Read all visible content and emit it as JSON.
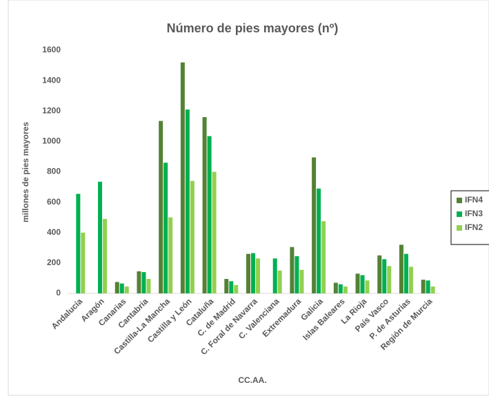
{
  "chart_data": {
    "type": "bar",
    "title": "Número de pies mayores (nº)",
    "x_label": "CC.AA.",
    "y_label": "millones de pies mayores",
    "categories": [
      "Andalucía",
      "Aragón",
      "Canarias",
      "Cantabria",
      "Castilla-La Mancha",
      "Castilla y León",
      "Cataluña",
      "C. de Madrid",
      "C. Foral de Navarra",
      "C. Valenciana",
      "Extremadura",
      "Galicia",
      "Islas Baleares",
      "La Rioja",
      "País Vasco",
      "P. de Asturias",
      "Región de Murcia"
    ],
    "series": [
      {
        "name": "IFN4",
        "color": "#548235",
        "values": [
          null,
          null,
          75,
          145,
          1135,
          1520,
          1160,
          95,
          260,
          null,
          305,
          895,
          70,
          130,
          250,
          320,
          90
        ]
      },
      {
        "name": "IFN3",
        "color": "#00b050",
        "values": [
          655,
          735,
          65,
          140,
          860,
          1210,
          1035,
          80,
          265,
          230,
          245,
          690,
          60,
          120,
          225,
          260,
          85
        ]
      },
      {
        "name": "IFN2",
        "color": "#92d050",
        "values": [
          400,
          490,
          45,
          95,
          500,
          740,
          800,
          55,
          230,
          150,
          155,
          475,
          45,
          85,
          180,
          175,
          45
        ]
      }
    ],
    "ylim": [
      0,
      1600
    ],
    "yticks": [
      0,
      200,
      400,
      600,
      800,
      1000,
      1200,
      1400,
      1600
    ],
    "grid": false,
    "legend": "right"
  }
}
